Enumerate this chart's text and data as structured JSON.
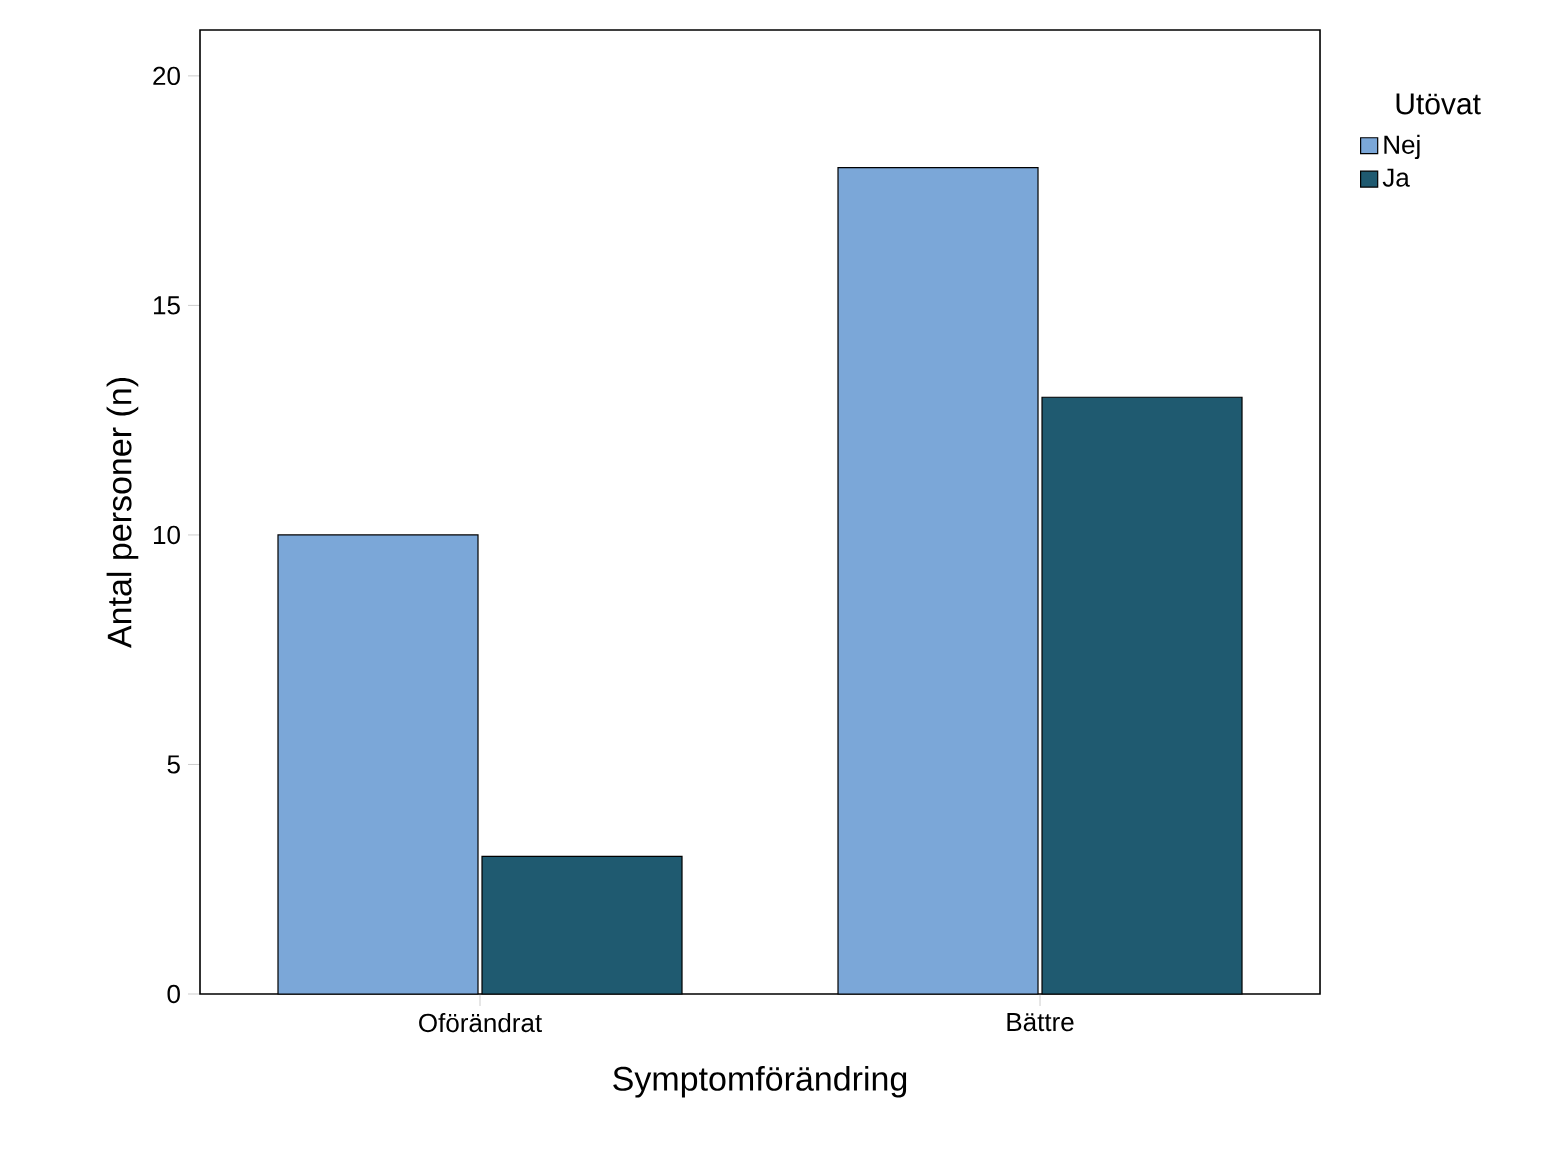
{
  "chart_data": {
    "type": "bar",
    "xlabel": "Symptomförändring",
    "ylabel": "Antal personer (n)",
    "legend_title": "Utövat",
    "categories": [
      "Oförändrat",
      "Bättre"
    ],
    "series": [
      {
        "name": "Nej",
        "color": "#7ba7d8",
        "values": [
          10,
          18
        ]
      },
      {
        "name": "Ja",
        "color": "#1f5a70",
        "values": [
          3,
          13
        ]
      }
    ],
    "ylim": [
      0,
      21
    ],
    "yticks": [
      0,
      5,
      10,
      15,
      20
    ],
    "grid": false,
    "legend": "right"
  }
}
